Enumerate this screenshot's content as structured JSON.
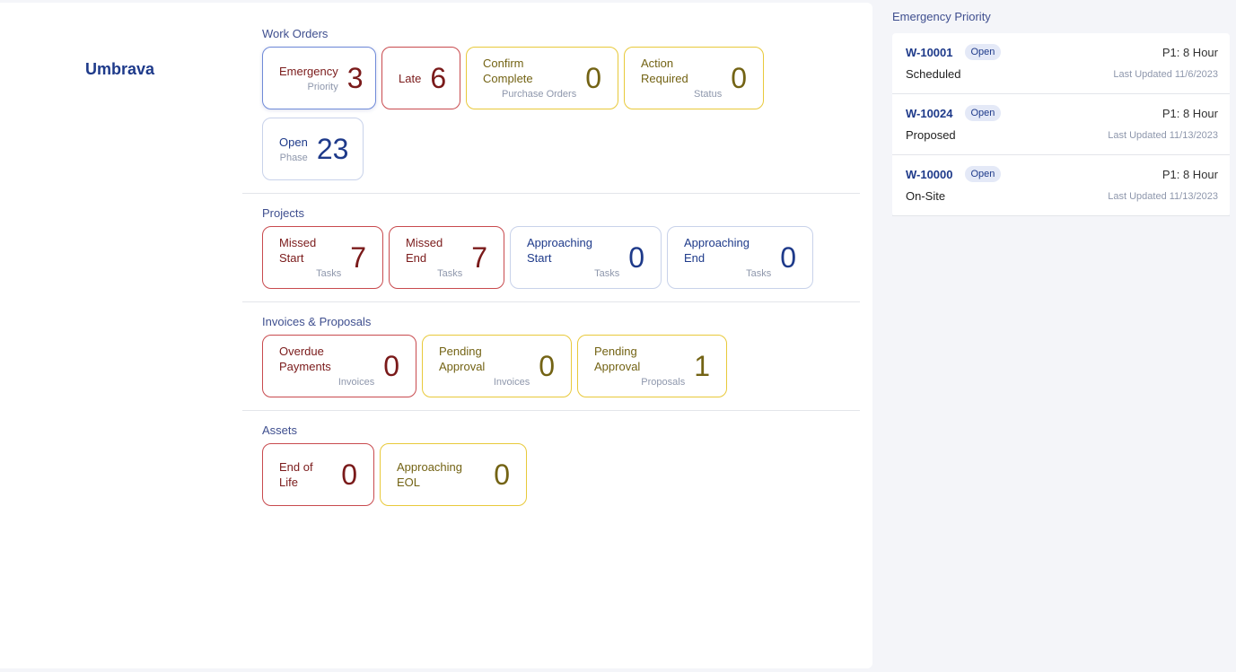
{
  "brand": "Umbrava",
  "sections": [
    {
      "title": "Work Orders",
      "cards": [
        {
          "label": "Emergency",
          "sub": "Priority",
          "value": "3"
        },
        {
          "label": "Late",
          "value": "6"
        },
        {
          "label": "Confirm Complete",
          "sub": "Purchase Orders",
          "value": "0"
        },
        {
          "label": "Action Required",
          "sub": "Status",
          "value": "0"
        },
        {
          "label": "Open",
          "sub": "Phase",
          "value": "23"
        }
      ]
    },
    {
      "title": "Projects",
      "cards": [
        {
          "label": "Missed Start",
          "sub": "Tasks",
          "value": "7"
        },
        {
          "label": "Missed End",
          "sub": "Tasks",
          "value": "7"
        },
        {
          "label": "Approaching Start",
          "sub": "Tasks",
          "value": "0"
        },
        {
          "label": "Approaching End",
          "sub": "Tasks",
          "value": "0"
        }
      ]
    },
    {
      "title": "Invoices & Proposals",
      "cards": [
        {
          "label": "Overdue Payments",
          "sub": "Invoices",
          "value": "0"
        },
        {
          "label": "Pending Approval",
          "sub": "Invoices",
          "value": "0"
        },
        {
          "label": "Pending Approval",
          "sub": "Proposals",
          "value": "1"
        }
      ]
    },
    {
      "title": "Assets",
      "cards": [
        {
          "label": "End of Life",
          "value": "0"
        },
        {
          "label": "Approaching EOL",
          "value": "0"
        }
      ]
    }
  ],
  "sidebar": {
    "title": "Emergency Priority",
    "items": [
      {
        "id": "W-10001",
        "badge": "Open",
        "priority": "P1: 8 Hour",
        "status": "Scheduled",
        "updated": "Last Updated 11/6/2023"
      },
      {
        "id": "W-10024",
        "badge": "Open",
        "priority": "P1: 8 Hour",
        "status": "Proposed",
        "updated": "Last Updated 11/13/2023"
      },
      {
        "id": "W-10000",
        "badge": "Open",
        "priority": "P1: 8 Hour",
        "status": "On-Site",
        "updated": "Last Updated 11/13/2023"
      }
    ]
  },
  "colors": {
    "red": "#7a1a1a",
    "red_border": "#c84a4e",
    "yellow": "#736314",
    "yellow_border": "#e8c93a",
    "blue": "#1e3a8a",
    "blue_border": "#c8d2ea"
  }
}
